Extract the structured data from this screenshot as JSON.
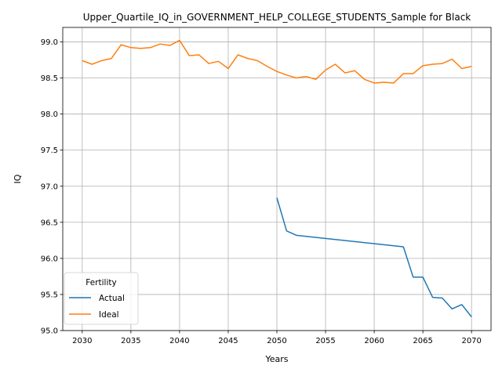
{
  "chart_data": {
    "type": "line",
    "title": "Upper_Quartile_IQ_in_GOVERNMENT_HELP_COLLEGE_STUDENTS_Sample for Black",
    "xlabel": "Years",
    "ylabel": "IQ",
    "xlim": [
      2028.0,
      2072.0
    ],
    "ylim": [
      95.0,
      99.2
    ],
    "xticks": [
      2030,
      2035,
      2040,
      2045,
      2050,
      2055,
      2060,
      2065,
      2070
    ],
    "yticks": [
      95.0,
      95.5,
      96.0,
      96.5,
      97.0,
      97.5,
      98.0,
      98.5,
      99.0
    ],
    "grid": true,
    "legend": {
      "title": "Fertility",
      "placement": "lower-left"
    },
    "series": [
      {
        "name": "Actual",
        "color": "#1f77b4",
        "x": [
          2050,
          2051,
          2052,
          2063,
          2064,
          2065,
          2066,
          2067,
          2068,
          2069,
          2070
        ],
        "y": [
          96.84,
          96.38,
          96.32,
          96.16,
          95.74,
          95.74,
          95.46,
          95.45,
          95.3,
          95.36,
          95.19
        ]
      },
      {
        "name": "Ideal",
        "color": "#ff7f0e",
        "x": [
          2030,
          2031,
          2032,
          2033,
          2034,
          2035,
          2036,
          2037,
          2038,
          2039,
          2040,
          2041,
          2042,
          2043,
          2044,
          2045,
          2046,
          2047,
          2048,
          2049,
          2050,
          2051,
          2052,
          2053,
          2054,
          2055,
          2056,
          2057,
          2058,
          2059,
          2060,
          2061,
          2062,
          2063,
          2064,
          2065,
          2066,
          2067,
          2068,
          2069,
          2070
        ],
        "y": [
          98.74,
          98.69,
          98.74,
          98.77,
          98.96,
          98.92,
          98.91,
          98.92,
          98.97,
          98.95,
          99.02,
          98.81,
          98.82,
          98.7,
          98.73,
          98.63,
          98.82,
          98.77,
          98.74,
          98.66,
          98.59,
          98.54,
          98.5,
          98.52,
          98.48,
          98.61,
          98.69,
          98.57,
          98.6,
          98.48,
          98.43,
          98.44,
          98.43,
          98.56,
          98.56,
          98.67,
          98.69,
          98.7,
          98.76,
          98.63,
          98.66
        ]
      }
    ]
  }
}
